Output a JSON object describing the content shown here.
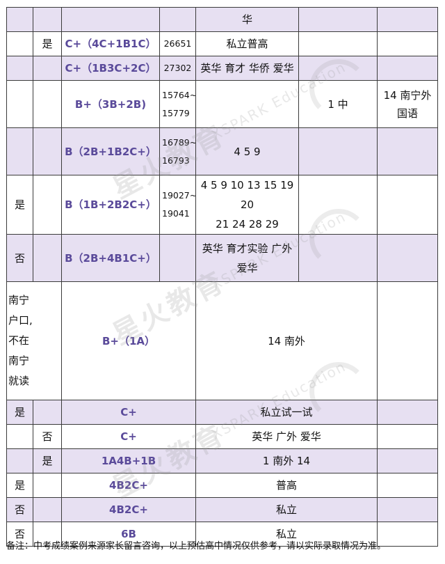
{
  "rows": [
    {
      "c1": "",
      "c2": "",
      "c3": "",
      "c4": "",
      "c5": "华",
      "c6": "",
      "c7": ""
    },
    {
      "c1": "",
      "c2": "是",
      "c3": "C+（4C+1B1C）",
      "c4": "26651",
      "c5": "私立普高",
      "c6": "",
      "c7": ""
    },
    {
      "c1": "",
      "c2": "",
      "c3": "C+（1B3C+2C）",
      "c4": "27302",
      "c5": "英华 育才 华侨 爱华",
      "c6": "",
      "c7": ""
    },
    {
      "c1": "",
      "c2": "",
      "c3": "B+（3B+2B)",
      "c4a": "15764~",
      "c4b": "15779",
      "c5": "",
      "c6": "1 中",
      "c7a": "14 南宁外",
      "c7b": "国语"
    },
    {
      "c1": "",
      "c2": "",
      "c3": "B（2B+1B2C+）",
      "c4a": "16789~",
      "c4b": "16793",
      "c5": "4 5 9",
      "c6": "",
      "c7": ""
    },
    {
      "c1": "是",
      "c2": "",
      "c3": "B（1B+2B2C+）",
      "c4a": "19027~",
      "c4b": "19041",
      "c5a": "4 5 9 10 13 15 19 20",
      "c5b": "21 24 28 29",
      "c6": "",
      "c7": ""
    },
    {
      "c1": "否",
      "c2": "",
      "c3": "B（2B+4B1C+）",
      "c4": "",
      "c5a": "英华 育才实验 广外",
      "c5b": "爱华",
      "c6": "",
      "c7": ""
    },
    {
      "c1a": "南宁",
      "c1b": "户口,",
      "c1c": "不在",
      "c1d": "南宁",
      "c1e": "就读",
      "c3": "B+（1A）",
      "c5": "14 南外"
    },
    {
      "c1": "是",
      "c3": "C+",
      "c5": "私立试一试"
    },
    {
      "c1": "",
      "c2": "否",
      "c3": "C+",
      "c5": "英华 广外 爱华"
    },
    {
      "c1": "",
      "c2": "是",
      "c3": "1A4B+1B",
      "c5": "1 南外 14"
    },
    {
      "c1": "是",
      "c3": "4B2C+",
      "c5": "普高"
    },
    {
      "c1": "否",
      "c3": "4B2C+",
      "c5": "私立"
    },
    {
      "c1": "否",
      "c3": "6B",
      "c5": "私立"
    }
  ],
  "watermark": {
    "cn": "星火教育",
    "en": "XSPARK Education"
  },
  "footnote": "备注：中考成绩案例来源家长留言咨询，以上预估高中情况仅供参考，请以实际录取情况为准。"
}
